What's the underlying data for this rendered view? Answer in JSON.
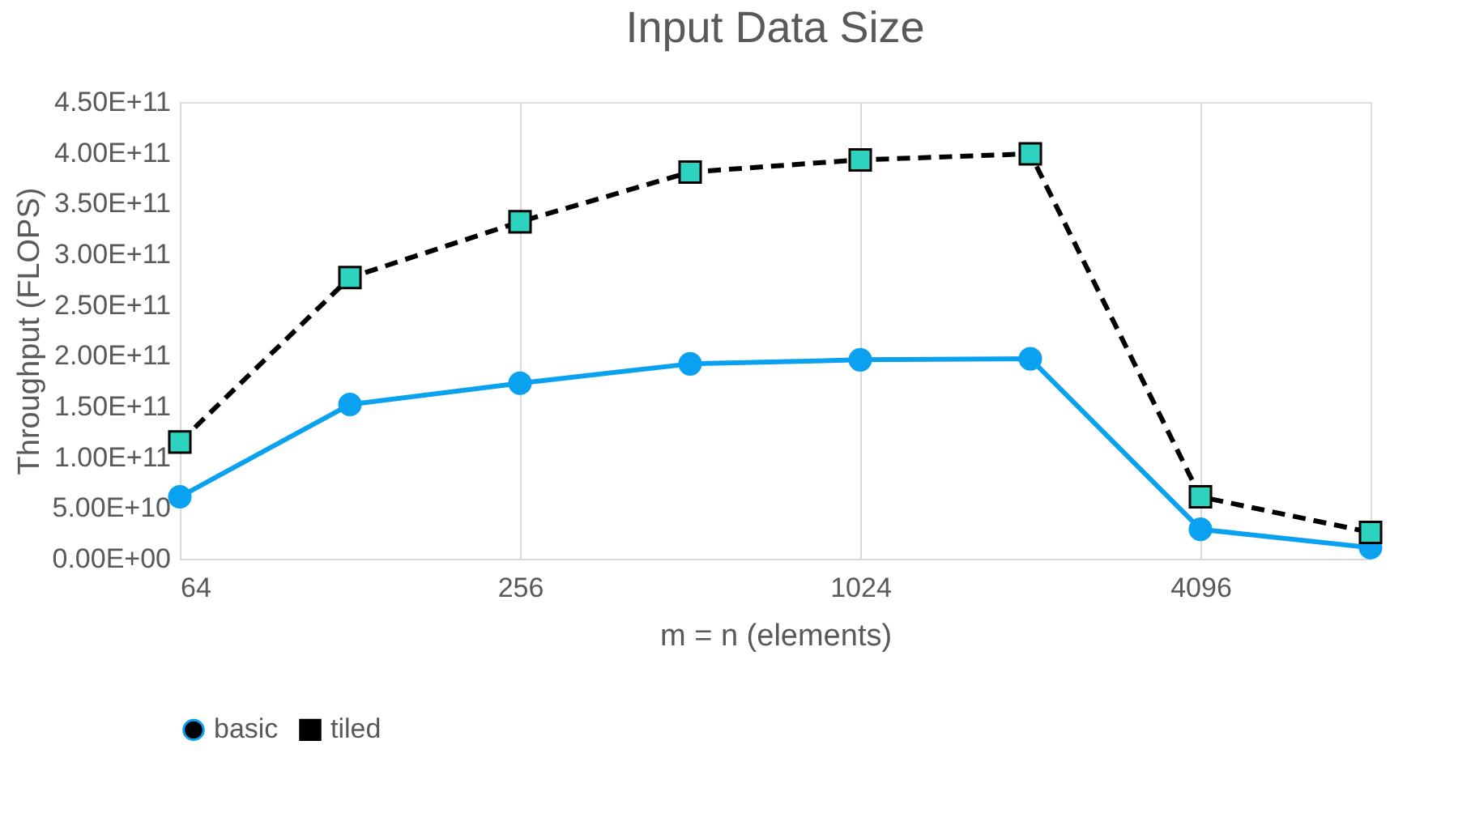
{
  "chart_data": {
    "type": "line",
    "title": "Input Data Size",
    "xlabel": "m = n (elements)",
    "ylabel": "Throughput (FLOPS)",
    "x": [
      64,
      128,
      256,
      512,
      1024,
      2048,
      4096,
      8192
    ],
    "series": [
      {
        "name": "basic",
        "color": "#0aa2f0",
        "marker": "circle",
        "line_style": "solid",
        "values": [
          61000000000.0,
          152000000000.0,
          173000000000.0,
          192000000000.0,
          196000000000.0,
          197000000000.0,
          29000000000.0,
          11000000000.0
        ]
      },
      {
        "name": "tiled",
        "color": "#000000",
        "marker": "square",
        "line_style": "dashed",
        "values": [
          115000000000.0,
          277000000000.0,
          332000000000.0,
          381000000000.0,
          393000000000.0,
          399000000000.0,
          61000000000.0,
          26000000000.0
        ]
      }
    ],
    "log": "x",
    "xlim": [
      64,
      8192
    ],
    "xticks": [
      64,
      256,
      1024,
      4096
    ],
    "ylim": [
      0,
      450000000000.0
    ],
    "yticks": [
      {
        "value": 0,
        "label": "0.00E+00"
      },
      {
        "value": 50000000000.0,
        "label": "5.00E+10"
      },
      {
        "value": 100000000000.0,
        "label": "1.00E+11"
      },
      {
        "value": 150000000000.0,
        "label": "1.50E+11"
      },
      {
        "value": 200000000000.0,
        "label": "2.00E+11"
      },
      {
        "value": 250000000000.0,
        "label": "2.50E+11"
      },
      {
        "value": 300000000000.0,
        "label": "3.00E+11"
      },
      {
        "value": 350000000000.0,
        "label": "3.50E+11"
      },
      {
        "value": 400000000000.0,
        "label": "4.00E+11"
      },
      {
        "value": 450000000000.0,
        "label": "4.50E+11"
      }
    ],
    "grid": "x",
    "legend": "bottom"
  }
}
